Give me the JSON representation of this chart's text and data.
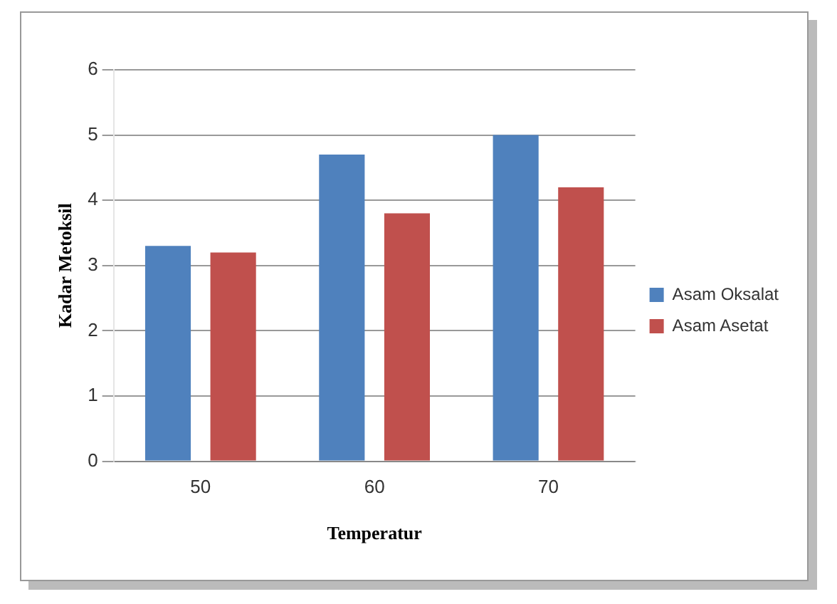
{
  "chart_data": {
    "type": "bar",
    "xlabel": "Temperatur",
    "ylabel": "Kadar Metoksil",
    "categories": [
      "50",
      "60",
      "70"
    ],
    "series": [
      {
        "name": "Asam Oksalat",
        "color": "#4f81bd",
        "values": [
          3.3,
          4.7,
          5.0
        ]
      },
      {
        "name": "Asam Asetat",
        "color": "#c0504d",
        "values": [
          3.2,
          3.8,
          4.2
        ]
      }
    ],
    "ylim": [
      0,
      6
    ],
    "yticks": [
      0,
      1,
      2,
      3,
      4,
      5,
      6
    ],
    "grid": "y",
    "legend": "right"
  }
}
